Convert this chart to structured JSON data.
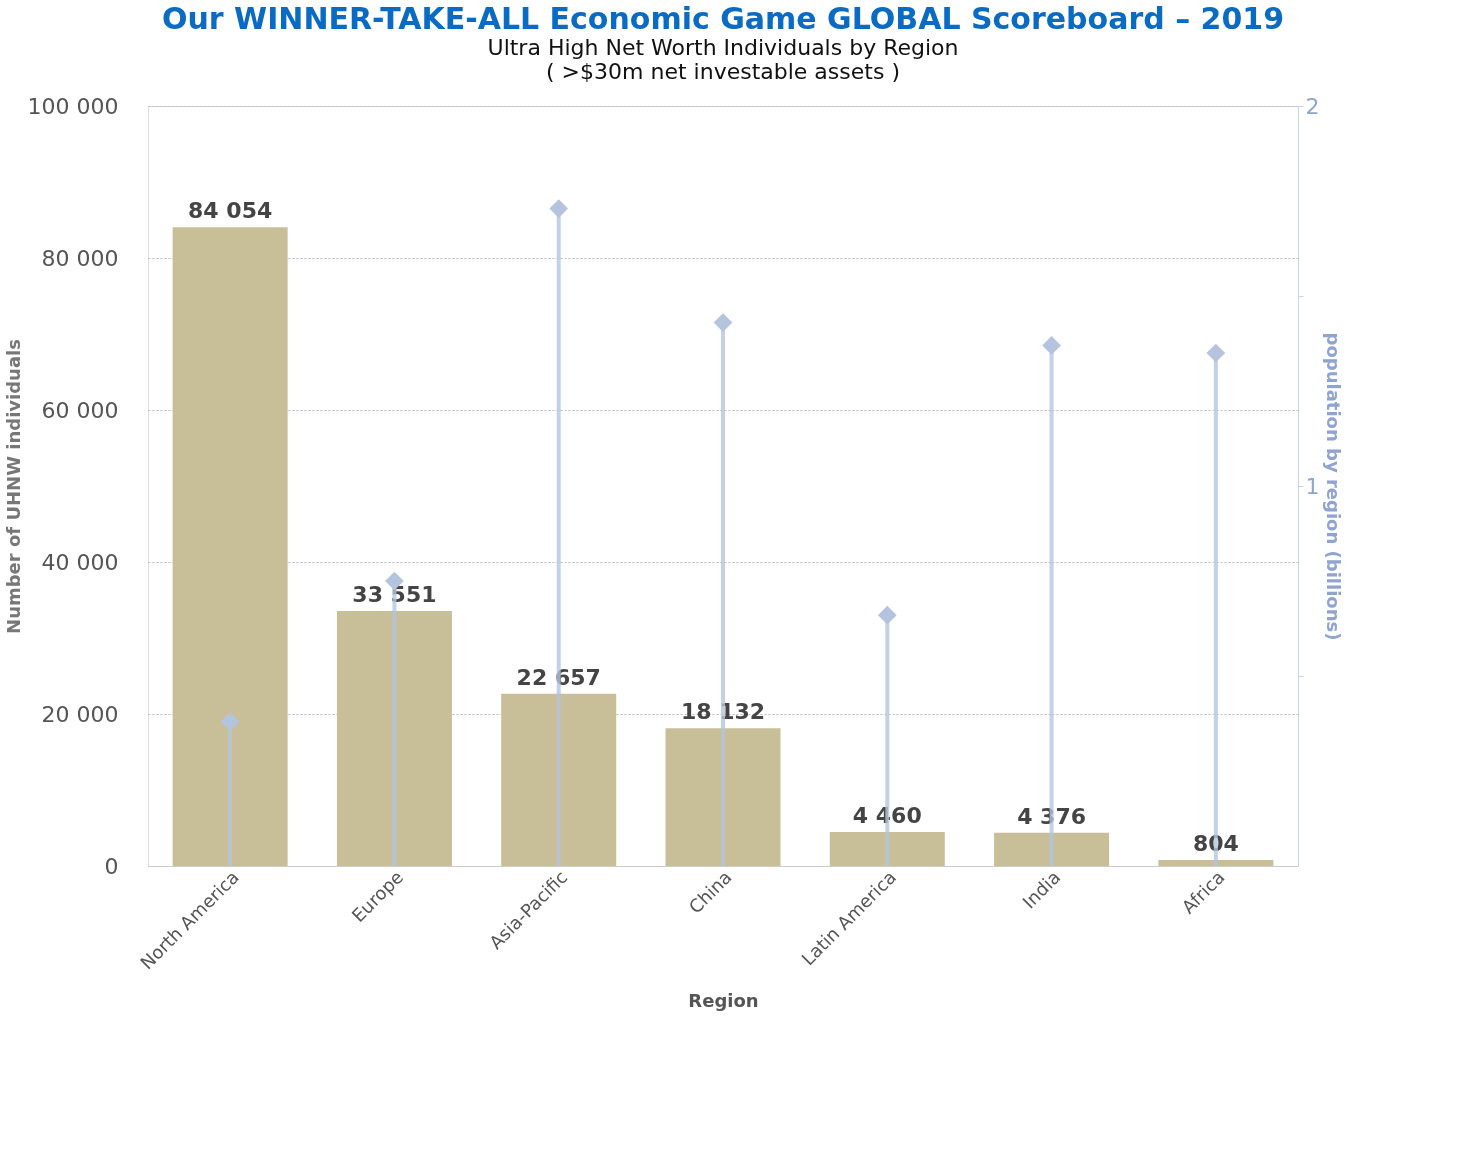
{
  "chart_data": {
    "type": "bar",
    "title": "Our WINNER-TAKE-ALL Economic Game GLOBAL Scoreboard – 2019",
    "subtitle": "Ultra High Net Worth Individuals by Region",
    "annotations": [
      "( >$30m net investable assets )"
    ],
    "xlabel": "Region",
    "ylabel": "Number of UHNW individuals",
    "y2label": "population by region (billions)",
    "categories": [
      "North America",
      "Europe",
      "Asia-Pacific",
      "China",
      "Latin America",
      "India",
      "Africa"
    ],
    "series": [
      {
        "color": "#c8bf98",
        "values": [
          84054,
          33551,
          22657,
          18132,
          4460,
          4376,
          804
        ],
        "value_labels": [
          "84 054",
          "33 551",
          "22 657",
          "18 132",
          "4 460",
          "4 376",
          "804"
        ]
      },
      {
        "type": "lollipop",
        "axis": "y2",
        "color": "#b4c4de",
        "marker": "diamond",
        "values": [
          0.38,
          0.75,
          1.73,
          1.43,
          0.66,
          1.37,
          1.35
        ]
      }
    ],
    "ylim": [
      0,
      100000
    ],
    "yticks": [
      {
        "value": 0,
        "label": "0"
      },
      {
        "value": 20000,
        "label": "20 000"
      },
      {
        "value": 40000,
        "label": "40 000"
      },
      {
        "value": 60000,
        "label": "60 000"
      },
      {
        "value": 80000,
        "label": "80 000"
      },
      {
        "value": 100000,
        "label": "100 000"
      }
    ],
    "y2lim": [
      0,
      2
    ],
    "y2ticks": [
      {
        "value": 0.5,
        "label": null
      },
      1,
      {
        "value": 1.5,
        "label": null
      },
      2
    ],
    "grid": "y"
  }
}
